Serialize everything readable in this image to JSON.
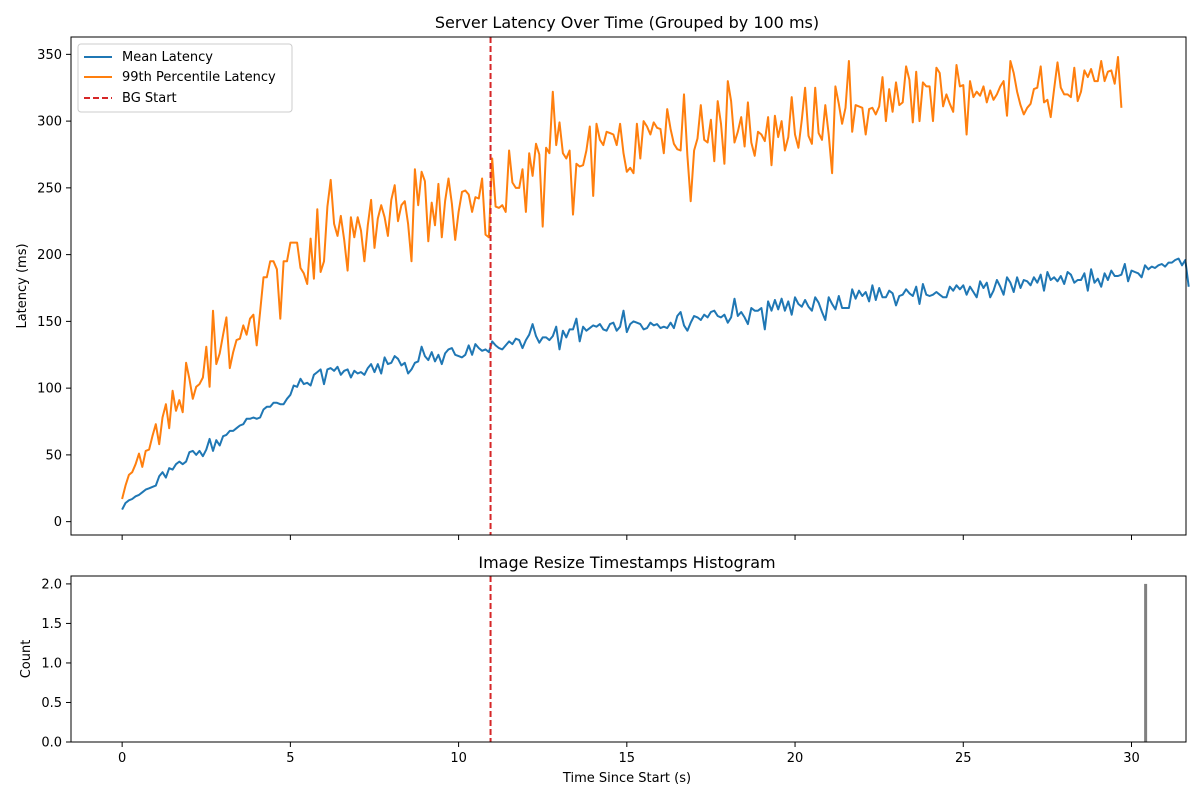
{
  "colors": {
    "mean": "#1f77b4",
    "p99": "#ff7f0e",
    "bg_start": "#d62728",
    "histogram": "#808080",
    "axes": "#000000",
    "background": "#ffffff"
  },
  "chart_data": [
    {
      "type": "line",
      "title": "Server Latency Over Time (Grouped by 100 ms)",
      "xlabel": "",
      "ylabel": "Latency (ms)",
      "xlim": [
        -1.52,
        31.62
      ],
      "ylim": [
        -10,
        363
      ],
      "xticks": [
        0,
        5,
        10,
        15,
        20,
        25,
        30
      ],
      "xtick_labels_visible": false,
      "yticks": [
        0,
        50,
        100,
        150,
        200,
        250,
        300,
        350
      ],
      "grid": false,
      "legend": {
        "position": "top-left",
        "entries": [
          "Mean Latency",
          "99th Percentile Latency",
          "BG Start"
        ]
      },
      "x": {
        "start": 0,
        "step": 0.1,
        "count": 302
      },
      "series": [
        {
          "name": "Mean Latency",
          "values": [
            9,
            14,
            16,
            17,
            19,
            20,
            22,
            24,
            25,
            26,
            27,
            34,
            37,
            33,
            40,
            39,
            43,
            45,
            43,
            45,
            52,
            53,
            50,
            53,
            49,
            54,
            62,
            53,
            61,
            57,
            64,
            65,
            68,
            68,
            70,
            72,
            73,
            77,
            77,
            78,
            77,
            78,
            84,
            86,
            86,
            89,
            89,
            88,
            88,
            92,
            95,
            102,
            101,
            107,
            103,
            104,
            102,
            110,
            112,
            114,
            103,
            114,
            115,
            113,
            116,
            110,
            113,
            114,
            108,
            113,
            111,
            112,
            110,
            115,
            118,
            112,
            118,
            111,
            123,
            118,
            119,
            124,
            122,
            117,
            119,
            111,
            114,
            119,
            120,
            131,
            124,
            121,
            127,
            120,
            125,
            118,
            126,
            129,
            130,
            125,
            124,
            123,
            125,
            132,
            125,
            133,
            130,
            128,
            129,
            127,
            135,
            132,
            130,
            129,
            132,
            135,
            133,
            137,
            136,
            130,
            136,
            140,
            148,
            139,
            134,
            138,
            138,
            136,
            139,
            146,
            129,
            143,
            138,
            144,
            144,
            152,
            135,
            146,
            143,
            145,
            147,
            146,
            148,
            144,
            143,
            148,
            149,
            143,
            146,
            158,
            142,
            148,
            150,
            149,
            148,
            144,
            145,
            149,
            147,
            148,
            145,
            146,
            145,
            149,
            145,
            154,
            157,
            147,
            143,
            149,
            154,
            153,
            151,
            155,
            153,
            157,
            158,
            154,
            153,
            155,
            149,
            153,
            167,
            154,
            157,
            153,
            148,
            160,
            158,
            158,
            160,
            144,
            165,
            158,
            166,
            159,
            167,
            158,
            165,
            155,
            168,
            163,
            161,
            166,
            161,
            158,
            168,
            164,
            157,
            151,
            168,
            163,
            159,
            169,
            160,
            160,
            160,
            174,
            167,
            173,
            169,
            172,
            165,
            177,
            166,
            175,
            168,
            168,
            173,
            171,
            162,
            169,
            170,
            174,
            171,
            169,
            176,
            163,
            178,
            170,
            169,
            170,
            172,
            170,
            168,
            168,
            176,
            173,
            177,
            174,
            177,
            170,
            176,
            172,
            168,
            180,
            175,
            179,
            168,
            173,
            181,
            176,
            170,
            183,
            179,
            172,
            183,
            175,
            181,
            180,
            177,
            183,
            179,
            185,
            173,
            187,
            181,
            183,
            180,
            184,
            178,
            187,
            185,
            179,
            181,
            181,
            186,
            173,
            189,
            179,
            182,
            176,
            186,
            181,
            188,
            184,
            184,
            185,
            193,
            180,
            188,
            187,
            186,
            183,
            192,
            189,
            191,
            190,
            192,
            193,
            191,
            194,
            194,
            196,
            197,
            192,
            196,
            176
          ]
        },
        {
          "name": "99th Percentile Latency",
          "values": [
            17,
            27,
            35,
            37,
            43,
            51,
            41,
            53,
            54,
            64,
            73,
            58,
            78,
            88,
            70,
            98,
            83,
            91,
            82,
            119,
            107,
            92,
            101,
            103,
            108,
            131,
            101,
            158,
            118,
            126,
            140,
            153,
            115,
            127,
            136,
            137,
            147,
            140,
            152,
            155,
            132,
            157,
            183,
            183,
            195,
            195,
            189,
            152,
            195,
            195,
            209,
            209,
            209,
            190,
            186,
            178,
            212,
            182,
            234,
            187,
            195,
            236,
            256,
            223,
            214,
            229,
            211,
            188,
            228,
            213,
            228,
            218,
            195,
            222,
            241,
            205,
            227,
            237,
            228,
            214,
            241,
            252,
            225,
            237,
            240,
            223,
            195,
            264,
            237,
            262,
            255,
            210,
            239,
            222,
            253,
            213,
            240,
            257,
            238,
            211,
            232,
            247,
            248,
            245,
            232,
            243,
            242,
            257,
            215,
            213,
            272,
            236,
            235,
            237,
            232,
            278,
            254,
            250,
            250,
            264,
            232,
            276,
            259,
            283,
            275,
            221,
            280,
            276,
            322,
            282,
            299,
            276,
            272,
            278,
            230,
            268,
            266,
            267,
            278,
            296,
            244,
            298,
            286,
            282,
            292,
            291,
            290,
            282,
            298,
            276,
            262,
            265,
            261,
            298,
            272,
            300,
            296,
            290,
            299,
            295,
            294,
            276,
            309,
            294,
            283,
            279,
            278,
            320,
            274,
            240,
            278,
            287,
            312,
            286,
            284,
            301,
            270,
            315,
            298,
            268,
            330,
            315,
            284,
            292,
            303,
            281,
            314,
            284,
            274,
            292,
            290,
            285,
            303,
            267,
            304,
            288,
            300,
            278,
            288,
            318,
            290,
            280,
            301,
            325,
            289,
            283,
            325,
            291,
            286,
            312,
            290,
            261,
            326,
            313,
            298,
            310,
            345,
            292,
            312,
            311,
            310,
            290,
            309,
            310,
            305,
            311,
            333,
            300,
            324,
            307,
            329,
            312,
            314,
            341,
            331,
            299,
            337,
            300,
            329,
            326,
            326,
            300,
            340,
            336,
            311,
            320,
            313,
            307,
            342,
            326,
            327,
            290,
            330,
            318,
            322,
            319,
            326,
            314,
            323,
            316,
            320,
            326,
            330,
            304,
            345,
            336,
            322,
            312,
            305,
            310,
            313,
            324,
            325,
            341,
            314,
            316,
            303,
            324,
            344,
            325,
            320,
            320,
            318,
            340,
            315,
            322,
            338,
            333,
            339,
            330,
            330,
            345,
            330,
            337,
            338,
            328,
            348,
            310
          ]
        }
      ],
      "annotations": [
        {
          "type": "vline",
          "x": 10.95,
          "style": "dashed",
          "label": "BG Start"
        }
      ]
    },
    {
      "type": "bar",
      "title": "Image Resize Timestamps Histogram",
      "xlabel": "Time Since Start (s)",
      "ylabel": "Count",
      "xlim": [
        -1.52,
        31.62
      ],
      "ylim": [
        0,
        2.1
      ],
      "xticks": [
        0,
        5,
        10,
        15,
        20,
        25,
        30
      ],
      "yticks": [
        0.0,
        0.5,
        1.0,
        1.5,
        2.0
      ],
      "grid": false,
      "bars": [
        {
          "x": 30.42,
          "value": 2
        }
      ],
      "annotations": [
        {
          "type": "vline",
          "x": 10.95,
          "style": "dashed"
        }
      ]
    }
  ]
}
